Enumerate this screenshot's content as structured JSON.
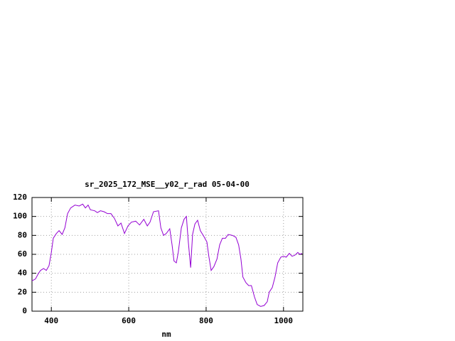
{
  "chart_data": {
    "type": "line",
    "title": "sr_2025_172_MSE__y02_r_rad 05-04-00",
    "x_label": "nm",
    "x": [
      350,
      359,
      367,
      372,
      380,
      387,
      394,
      400,
      405,
      413,
      420,
      428,
      435,
      442,
      450,
      461,
      472,
      481,
      488,
      495,
      501,
      512,
      519,
      527,
      536,
      545,
      554,
      563,
      572,
      580,
      589,
      598,
      607,
      618,
      628,
      639,
      648,
      655,
      664,
      677,
      683,
      690,
      697,
      706,
      712,
      717,
      723,
      728,
      736,
      743,
      749,
      754,
      760,
      765,
      771,
      778,
      785,
      794,
      802,
      807,
      813,
      820,
      828,
      835,
      842,
      850,
      857,
      868,
      877,
      884,
      890,
      895,
      903,
      910,
      917,
      925,
      932,
      941,
      950,
      958,
      963,
      971,
      978,
      985,
      993,
      1000,
      1007,
      1015,
      1022,
      1029,
      1037,
      1042,
      1048
    ],
    "values": [
      32,
      34,
      40,
      43,
      45,
      43,
      48,
      62,
      77,
      82,
      85,
      81,
      88,
      103,
      109,
      112,
      111,
      113,
      109,
      112,
      107,
      106,
      104,
      106,
      105,
      103,
      103,
      98,
      90,
      93,
      82,
      90,
      94,
      95,
      91,
      97,
      90,
      94,
      105,
      106,
      88,
      80,
      82,
      87,
      70,
      53,
      51,
      62,
      88,
      97,
      100,
      73,
      46,
      81,
      92,
      96,
      85,
      79,
      73,
      58,
      43,
      47,
      55,
      70,
      77,
      77,
      81,
      80,
      78,
      70,
      55,
      36,
      30,
      27,
      27,
      15,
      7,
      5,
      6,
      10,
      20,
      25,
      36,
      51,
      57,
      58,
      57,
      61,
      58,
      59,
      62,
      60,
      61
    ],
    "color": "#9400d3",
    "xlim": [
      350,
      1050
    ],
    "ylim": [
      0,
      120
    ],
    "xticks": [
      400,
      600,
      800,
      1000
    ],
    "yticks": [
      0,
      20,
      40,
      60,
      80,
      100,
      120
    ],
    "grid": true
  }
}
